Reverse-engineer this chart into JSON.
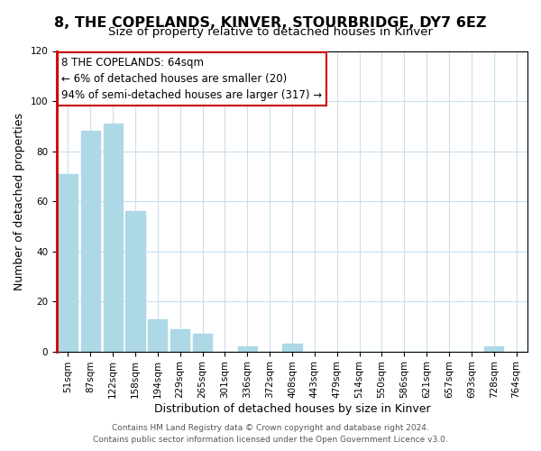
{
  "title1": "8, THE COPELANDS, KINVER, STOURBRIDGE, DY7 6EZ",
  "title2": "Size of property relative to detached houses in Kinver",
  "xlabel": "Distribution of detached houses by size in Kinver",
  "ylabel": "Number of detached properties",
  "bar_labels": [
    "51sqm",
    "87sqm",
    "122sqm",
    "158sqm",
    "194sqm",
    "229sqm",
    "265sqm",
    "301sqm",
    "336sqm",
    "372sqm",
    "408sqm",
    "443sqm",
    "479sqm",
    "514sqm",
    "550sqm",
    "586sqm",
    "621sqm",
    "657sqm",
    "693sqm",
    "728sqm",
    "764sqm"
  ],
  "bar_values": [
    71,
    88,
    91,
    56,
    13,
    9,
    7,
    0,
    2,
    0,
    3,
    0,
    0,
    0,
    0,
    0,
    0,
    0,
    0,
    2,
    0
  ],
  "bar_color": "#add8e6",
  "annotation_line1": "8 THE COPELANDS: 64sqm",
  "annotation_line2": "← 6% of detached houses are smaller (20)",
  "annotation_line3": "94% of semi-detached houses are larger (317) →",
  "annotation_box_color": "#ffffff",
  "annotation_border_color": "#cc0000",
  "subject_line_color": "#cc0000",
  "ylim": [
    0,
    120
  ],
  "yticks": [
    0,
    20,
    40,
    60,
    80,
    100,
    120
  ],
  "footer1": "Contains HM Land Registry data © Crown copyright and database right 2024.",
  "footer2": "Contains public sector information licensed under the Open Government Licence v3.0.",
  "title_fontsize": 11.5,
  "subtitle_fontsize": 9.5,
  "axis_label_fontsize": 9,
  "tick_fontsize": 7.5,
  "footer_fontsize": 6.5,
  "annotation_fontsize": 8.5
}
